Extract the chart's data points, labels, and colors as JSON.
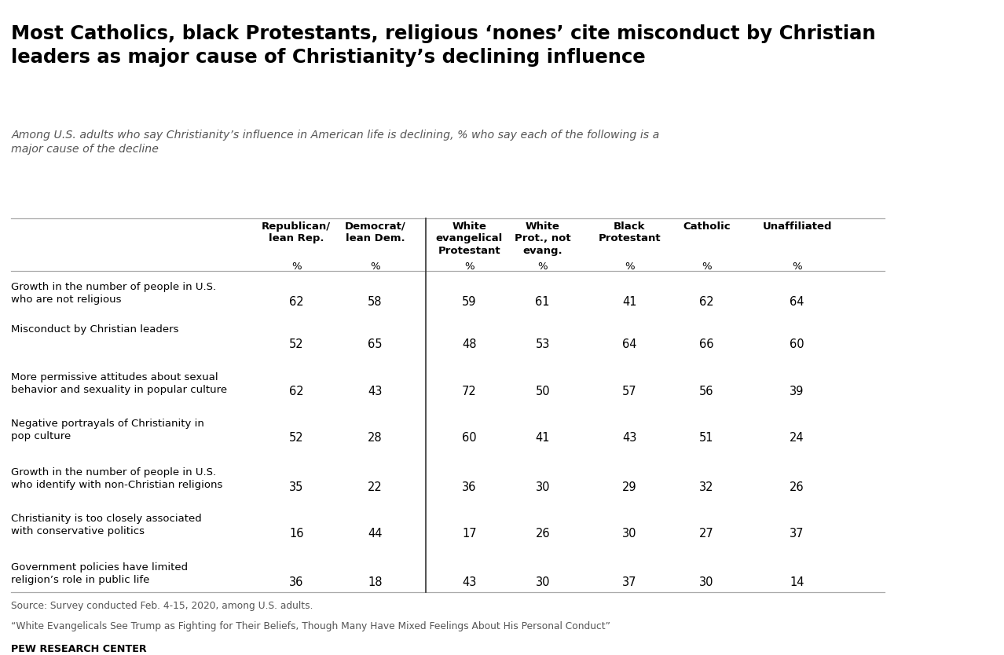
{
  "title": "Most Catholics, black Protestants, religious ‘nones’ cite misconduct by Christian\nleaders as major cause of Christianity’s declining influence",
  "subtitle": "Among U.S. adults who say Christianity’s influence in American life is declining, % who say each of the following is a\nmajor cause of the decline",
  "columns": [
    "Republican/\nlean Rep.",
    "Democrat/\nlean Dem.",
    "White\nevangelical\nProtestant",
    "White\nProt., not\nevang.",
    "Black\nProtestant",
    "Catholic",
    "Unaffiliated"
  ],
  "rows": [
    {
      "label": "Growth in the number of people in U.S.\nwho are not religious",
      "values": [
        62,
        58,
        59,
        61,
        41,
        62,
        64
      ]
    },
    {
      "label": "Misconduct by Christian leaders",
      "values": [
        52,
        65,
        48,
        53,
        64,
        66,
        60
      ]
    },
    {
      "label": "More permissive attitudes about sexual\nbehavior and sexuality in popular culture",
      "values": [
        62,
        43,
        72,
        50,
        57,
        56,
        39
      ]
    },
    {
      "label": "Negative portrayals of Christianity in\npop culture",
      "values": [
        52,
        28,
        60,
        41,
        43,
        51,
        24
      ]
    },
    {
      "label": "Growth in the number of people in U.S.\nwho identify with non-Christian religions",
      "values": [
        35,
        22,
        36,
        30,
        29,
        32,
        26
      ]
    },
    {
      "label": "Christianity is too closely associated\nwith conservative politics",
      "values": [
        16,
        44,
        17,
        26,
        30,
        27,
        37
      ]
    },
    {
      "label": "Government policies have limited\nreligion’s role in public life",
      "values": [
        36,
        18,
        43,
        30,
        37,
        30,
        14
      ]
    }
  ],
  "source_line1": "Source: Survey conducted Feb. 4-15, 2020, among U.S. adults.",
  "source_line2": "“White Evangelicals See Trump as Fighting for Their Beliefs, Though Many Have Mixed Feelings About His Personal Conduct”",
  "source_line3": "PEW RESEARCH CENTER",
  "bg_color": "#ffffff",
  "title_color": "#000000",
  "subtitle_color": "#555555",
  "header_color": "#000000",
  "cell_color": "#000000",
  "row_label_color": "#000000",
  "line_color": "#aaaaaa",
  "divider_color": "#333333"
}
